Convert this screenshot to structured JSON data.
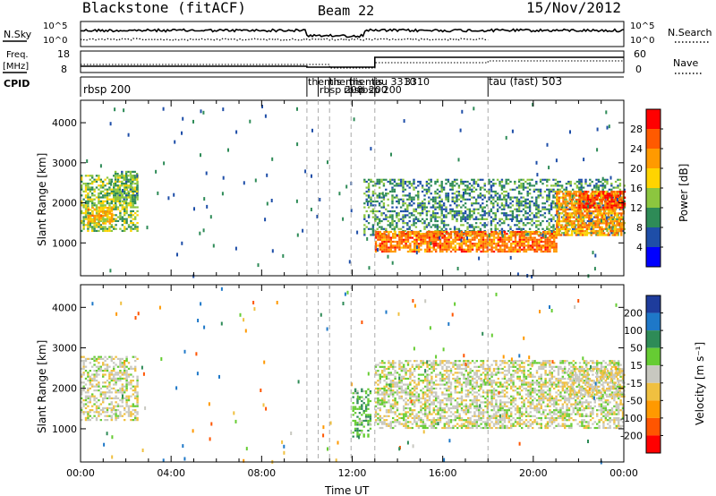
{
  "header": {
    "title": "Blackstone (fitACF)",
    "beam": "Beam 22",
    "date": "15/Nov/2012"
  },
  "noise_panel": {
    "left_label": "N.Sky",
    "left_ticks": [
      "10^5",
      "10^0"
    ],
    "right_label": "N.Search",
    "right_ticks": [
      "10^5",
      "10^0"
    ]
  },
  "freq_panel": {
    "left_label_top": "Freq.",
    "left_label_bottom": "[MHz]",
    "left_ticks": [
      "18",
      "8"
    ],
    "right_label": "Nave",
    "right_ticks": [
      "60",
      "0"
    ]
  },
  "cpid_panel": {
    "label": "CPID",
    "entries": [
      {
        "start": 0.0,
        "text": "rbsp 200"
      },
      {
        "start": 10.0,
        "text": "themis"
      },
      {
        "start": 10.5,
        "text": "rbsp 200"
      },
      {
        "start": 11.0,
        "text": "themis"
      },
      {
        "start": 11.6,
        "text": "rbsp 200"
      },
      {
        "start": 12.0,
        "text": "themis"
      },
      {
        "start": 12.4,
        "text": "rbsp 200"
      },
      {
        "start": 13.0,
        "text": "tau 3310"
      },
      {
        "start": 14.0,
        "text": "3310"
      },
      {
        "start": 18.0,
        "text": "tau (fast) 503"
      }
    ],
    "boundaries": [
      10.0,
      10.5,
      11.0,
      11.95,
      13.0,
      18.0
    ]
  },
  "axes": {
    "x_ticks": [
      "00:00",
      "04:00",
      "08:00",
      "12:00",
      "16:00",
      "20:00",
      "00:00"
    ],
    "x_label": "Time UT",
    "y_ticks": [
      "1000",
      "2000",
      "3000",
      "4000"
    ],
    "y_label": "Slant Range [km]"
  },
  "power_colorbar": {
    "label": "Power [dB]",
    "ticks": [
      "28",
      "24",
      "20",
      "16",
      "12",
      "8",
      "4"
    ],
    "colors": [
      "#ff0000",
      "#ff5a00",
      "#ff9a00",
      "#ffd400",
      "#8cc63f",
      "#2e8b57",
      "#1e4ea8",
      "#0000ff"
    ]
  },
  "velocity_colorbar": {
    "label": "Velocity [m s⁻¹]",
    "ticks": [
      "200",
      "100",
      "50",
      "15",
      "-15",
      "-50",
      "-100",
      "-200"
    ],
    "colors": [
      "#1e3c9c",
      "#1e78c8",
      "#2e8b57",
      "#66cc33",
      "#c8c8c0",
      "#f0c040",
      "#ff9900",
      "#ff5500",
      "#ff0000"
    ]
  },
  "chart_data": [
    {
      "type": "heatmap",
      "name": "power",
      "xlim_hours": [
        0,
        24
      ],
      "ylim_km": [
        180,
        4560
      ],
      "clim_db": [
        0,
        32
      ],
      "regions": [
        {
          "t": [
            0.0,
            2.5
          ],
          "r": [
            1300,
            2700
          ],
          "v": 14,
          "density": 0.6
        },
        {
          "t": [
            0.3,
            1.4
          ],
          "r": [
            1500,
            1900
          ],
          "v": 20,
          "density": 0.7
        },
        {
          "t": [
            1.5,
            2.5
          ],
          "r": [
            2000,
            2800
          ],
          "v": 12,
          "density": 0.6
        },
        {
          "t": [
            12.5,
            24.0
          ],
          "r": [
            1200,
            2600
          ],
          "v": 10,
          "density": 0.45
        },
        {
          "t": [
            13.0,
            21.0
          ],
          "r": [
            800,
            1300
          ],
          "v": 24,
          "density": 0.8
        },
        {
          "t": [
            21.0,
            24.0
          ],
          "r": [
            1200,
            2300
          ],
          "v": 22,
          "density": 0.7
        },
        {
          "t": [
            22.0,
            24.0
          ],
          "r": [
            1900,
            2300
          ],
          "v": 28,
          "density": 0.6
        }
      ]
    },
    {
      "type": "heatmap",
      "name": "velocity",
      "xlim_hours": [
        0,
        24
      ],
      "ylim_km": [
        180,
        4560
      ],
      "clim_ms": [
        -200,
        200
      ],
      "regions": [
        {
          "t": [
            0.0,
            2.5
          ],
          "r": [
            1200,
            2800
          ],
          "v": 0,
          "density": 0.5
        },
        {
          "t": [
            12.0,
            12.8
          ],
          "r": [
            800,
            2000
          ],
          "v": 40,
          "density": 0.5
        },
        {
          "t": [
            13.0,
            24.0
          ],
          "r": [
            1000,
            2700
          ],
          "v": 0,
          "density": 0.55
        },
        {
          "t": [
            21.5,
            24.0
          ],
          "r": [
            1800,
            2500
          ],
          "v": -10,
          "density": 0.5
        }
      ]
    }
  ]
}
